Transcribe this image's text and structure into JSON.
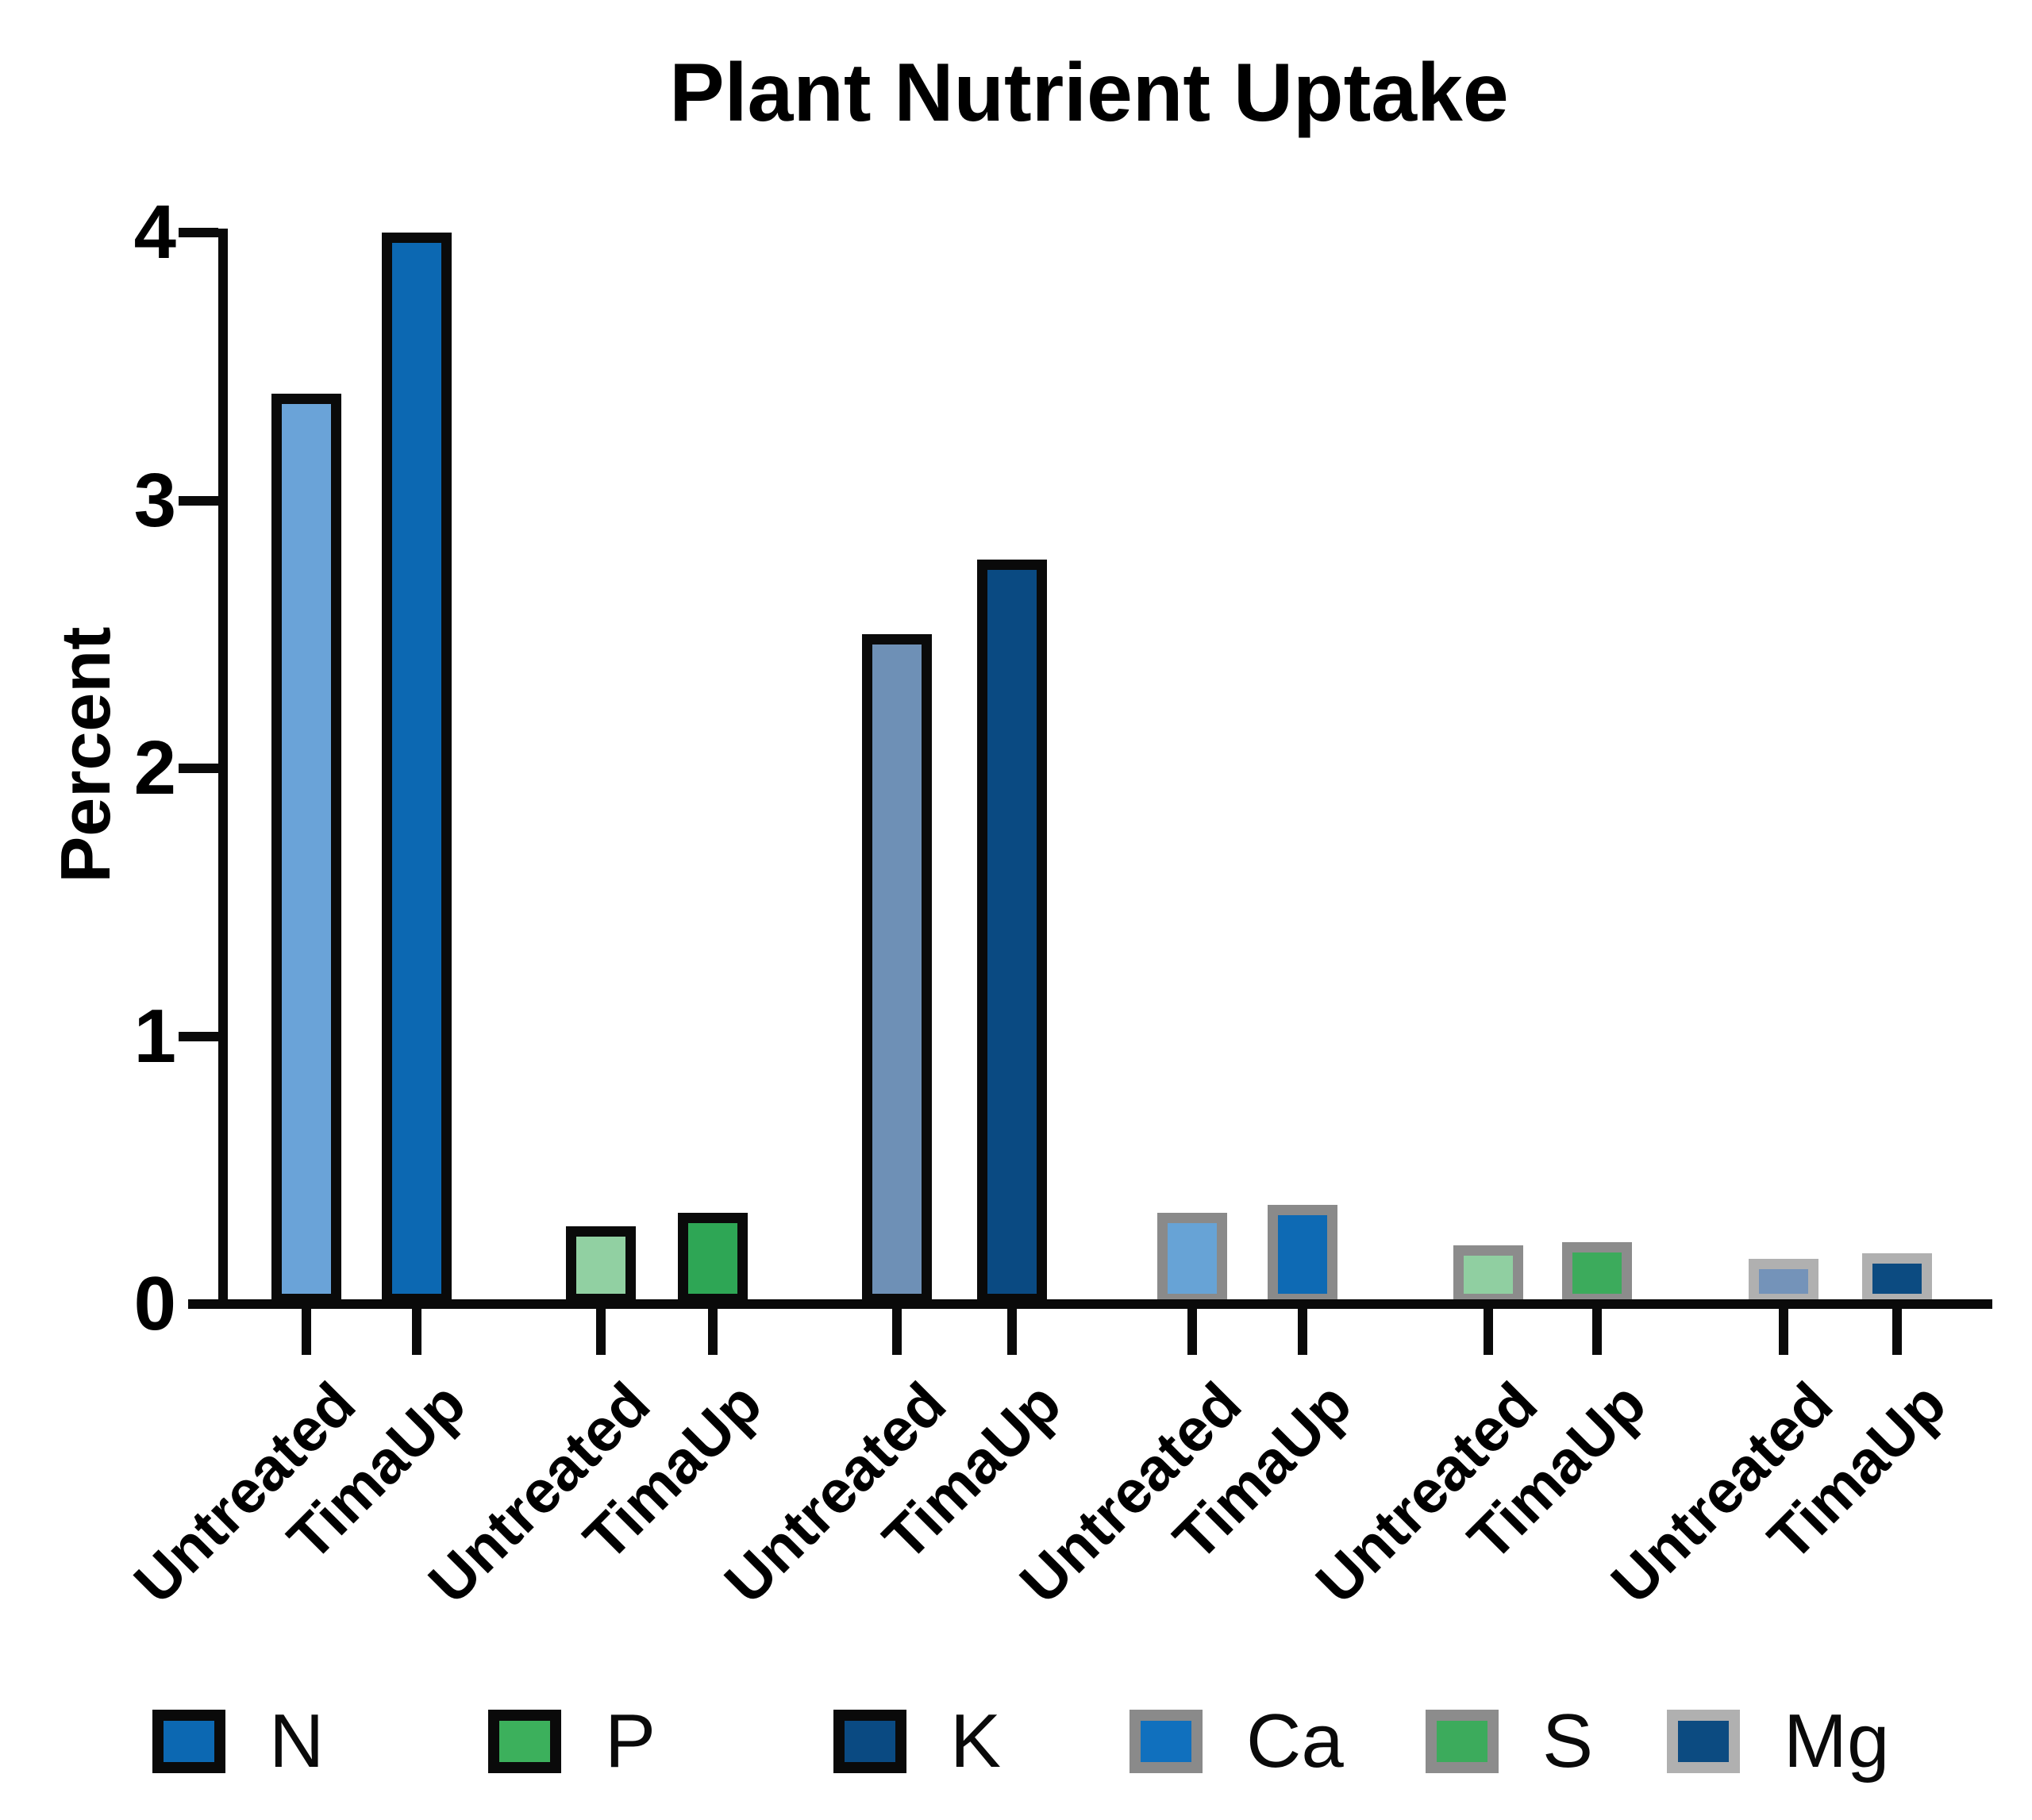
{
  "chart_data": {
    "type": "bar",
    "title": "Plant Nutrient Uptake",
    "ylabel": "Percent",
    "ylim": [
      0,
      4
    ],
    "yticks": [
      0,
      1,
      2,
      3,
      4
    ],
    "grid": false,
    "categories": [
      "Untreated",
      "TimaUp"
    ],
    "x_tick_labels": [
      "Untreated",
      "TimaUp",
      "Untreated",
      "TimaUp",
      "Untreated",
      "TimaUp",
      "Untreated",
      "TimaUp",
      "Untreated",
      "TimaUp",
      "Untreated",
      "TimaUp"
    ],
    "groups": [
      {
        "nutrient": "N",
        "border_color": "#0a0a0a",
        "series": [
          {
            "treatment": "Untreated",
            "value": 3.4,
            "fill": "#6aa3d8"
          },
          {
            "treatment": "TimaUp",
            "value": 4.0,
            "fill": "#0c68b2"
          }
        ]
      },
      {
        "nutrient": "P",
        "border_color": "#0a0a0a",
        "series": [
          {
            "treatment": "Untreated",
            "value": 0.29,
            "fill": "#91d0a2"
          },
          {
            "treatment": "TimaUp",
            "value": 0.34,
            "fill": "#2ea655"
          }
        ]
      },
      {
        "nutrient": "K",
        "border_color": "#0a0a0a",
        "series": [
          {
            "treatment": "Untreated",
            "value": 2.5,
            "fill": "#6e90b6"
          },
          {
            "treatment": "TimaUp",
            "value": 2.78,
            "fill": "#0a4a82"
          }
        ]
      },
      {
        "nutrient": "Ca",
        "border_color": "#8a8a8a",
        "series": [
          {
            "treatment": "Untreated",
            "value": 0.34,
            "fill": "#67a3d6"
          },
          {
            "treatment": "TimaUp",
            "value": 0.37,
            "fill": "#0e6ab4"
          }
        ]
      },
      {
        "nutrient": "S",
        "border_color": "#8c8c8c",
        "series": [
          {
            "treatment": "Untreated",
            "value": 0.22,
            "fill": "#90cfa1"
          },
          {
            "treatment": "TimaUp",
            "value": 0.23,
            "fill": "#3cab5c"
          }
        ]
      },
      {
        "nutrient": "Mg",
        "border_color": "#b0b0b0",
        "series": [
          {
            "treatment": "Untreated",
            "value": 0.17,
            "fill": "#7493b9"
          },
          {
            "treatment": "TimaUp",
            "value": 0.19,
            "fill": "#0c4b81"
          }
        ]
      }
    ],
    "legend": {
      "position": "bottom",
      "entries": [
        {
          "label": "N",
          "fill": "#0c68b2",
          "border": "#0a0a0a"
        },
        {
          "label": "P",
          "fill": "#3cb05c",
          "border": "#0a0a0a"
        },
        {
          "label": "K",
          "fill": "#0a4a82",
          "border": "#0a0a0a"
        },
        {
          "label": "Ca",
          "fill": "#1070be",
          "border": "#8a8a8a"
        },
        {
          "label": "S",
          "fill": "#3cab5c",
          "border": "#8c8c8c"
        },
        {
          "label": "Mg",
          "fill": "#0c4b81",
          "border": "#b0b0b0"
        }
      ]
    }
  }
}
